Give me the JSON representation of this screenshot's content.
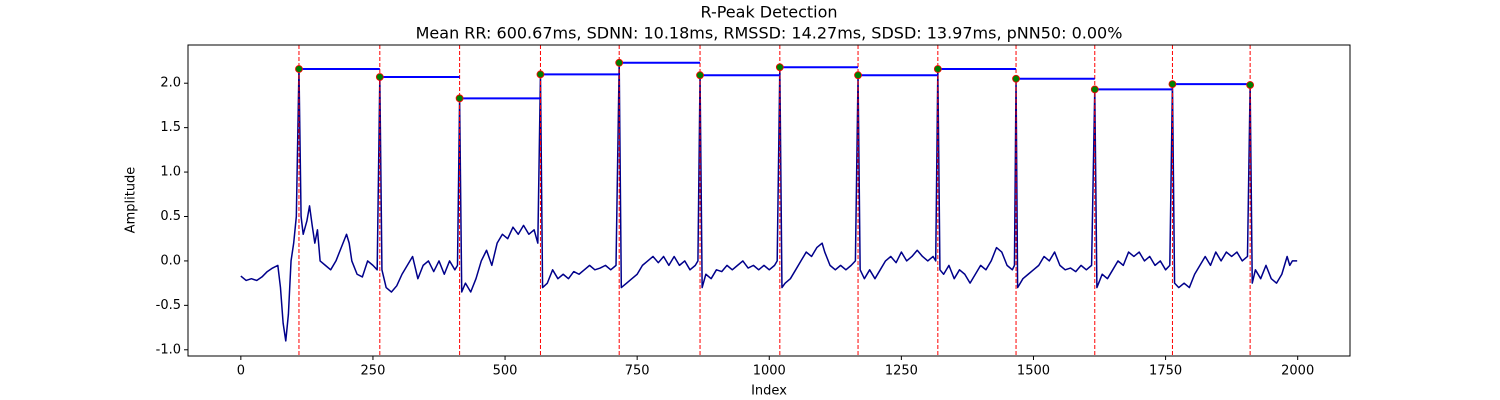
{
  "chart_data": {
    "type": "line",
    "title": "R-Peak Detection",
    "subtitle": "Mean RR: 600.67ms, SDNN: 10.18ms, RMSSD: 14.27ms, SDSD: 13.97ms, pNN50: 0.00%",
    "xlabel": "Index",
    "ylabel": "Amplitude",
    "xlim": [
      -100,
      2099
    ],
    "ylim": [
      -1.07,
      2.43
    ],
    "xticks": [
      0,
      250,
      500,
      750,
      1000,
      1250,
      1500,
      1750,
      2000
    ],
    "yticks": [
      {
        "value": -1,
        "label": "-1.0"
      },
      -0.5,
      {
        "value": 0,
        "label": "0.0"
      },
      0.5,
      {
        "value": 1,
        "label": "1.0"
      },
      1.5,
      {
        "value": 2,
        "label": "2.0"
      }
    ],
    "grid": false,
    "signal": {
      "color": "#00008b",
      "x": [
        0,
        10,
        20,
        30,
        40,
        50,
        60,
        70,
        75,
        80,
        85,
        90,
        95,
        100,
        105,
        110,
        114,
        118,
        125,
        130,
        135,
        140,
        145,
        150,
        160,
        170,
        180,
        190,
        200,
        205,
        210,
        220,
        230,
        240,
        250,
        258,
        263,
        267,
        275,
        285,
        295,
        305,
        315,
        325,
        335,
        345,
        355,
        365,
        375,
        385,
        395,
        405,
        410,
        414,
        418,
        425,
        435,
        445,
        455,
        465,
        475,
        485,
        495,
        505,
        515,
        525,
        535,
        545,
        555,
        562,
        567,
        571,
        580,
        590,
        600,
        610,
        620,
        630,
        640,
        650,
        660,
        670,
        680,
        690,
        700,
        710,
        716,
        720,
        730,
        740,
        750,
        760,
        770,
        780,
        790,
        800,
        810,
        820,
        830,
        840,
        850,
        860,
        865,
        869,
        873,
        880,
        890,
        900,
        910,
        920,
        930,
        940,
        950,
        960,
        970,
        980,
        990,
        1000,
        1010,
        1015,
        1020,
        1024,
        1030,
        1040,
        1050,
        1060,
        1070,
        1080,
        1090,
        1100,
        1105,
        1115,
        1125,
        1135,
        1145,
        1155,
        1163,
        1168,
        1172,
        1180,
        1190,
        1200,
        1210,
        1220,
        1230,
        1240,
        1250,
        1260,
        1270,
        1280,
        1290,
        1300,
        1310,
        1315,
        1319,
        1323,
        1330,
        1340,
        1350,
        1360,
        1370,
        1380,
        1390,
        1400,
        1410,
        1420,
        1430,
        1440,
        1450,
        1460,
        1464,
        1467,
        1470,
        1480,
        1490,
        1500,
        1510,
        1520,
        1530,
        1540,
        1550,
        1560,
        1570,
        1580,
        1590,
        1600,
        1610,
        1616,
        1620,
        1630,
        1640,
        1650,
        1660,
        1670,
        1680,
        1690,
        1700,
        1710,
        1720,
        1730,
        1740,
        1750,
        1758,
        1763,
        1767,
        1775,
        1785,
        1795,
        1805,
        1815,
        1825,
        1835,
        1845,
        1855,
        1865,
        1875,
        1885,
        1895,
        1905,
        1910,
        1914,
        1920,
        1930,
        1940,
        1950,
        1960,
        1970,
        1980,
        1985,
        1990,
        1999
      ],
      "values": [
        -0.17,
        -0.22,
        -0.2,
        -0.22,
        -0.18,
        -0.12,
        -0.08,
        -0.05,
        -0.3,
        -0.7,
        -0.9,
        -0.6,
        0.0,
        0.2,
        0.5,
        2.16,
        0.5,
        0.3,
        0.45,
        0.62,
        0.4,
        0.2,
        0.35,
        0.0,
        -0.05,
        -0.1,
        0.0,
        0.15,
        0.3,
        0.2,
        0.0,
        -0.15,
        -0.18,
        0.0,
        -0.05,
        -0.1,
        2.07,
        -0.1,
        -0.3,
        -0.35,
        -0.28,
        -0.15,
        -0.05,
        0.05,
        -0.2,
        -0.05,
        0.0,
        -0.12,
        0.0,
        -0.15,
        0.0,
        -0.1,
        -0.05,
        1.83,
        -0.35,
        -0.25,
        -0.35,
        -0.2,
        0.0,
        0.12,
        -0.05,
        0.2,
        0.3,
        0.25,
        0.38,
        0.3,
        0.4,
        0.3,
        0.35,
        0.2,
        2.1,
        -0.3,
        -0.25,
        -0.1,
        -0.2,
        -0.15,
        -0.2,
        -0.12,
        -0.15,
        -0.1,
        -0.05,
        -0.1,
        -0.08,
        -0.05,
        -0.1,
        -0.05,
        2.23,
        -0.3,
        -0.25,
        -0.2,
        -0.15,
        -0.05,
        0.0,
        0.05,
        -0.02,
        0.05,
        -0.05,
        0.05,
        -0.05,
        0.0,
        -0.1,
        -0.05,
        0.0,
        2.09,
        -0.3,
        -0.15,
        -0.2,
        -0.1,
        -0.12,
        -0.05,
        -0.1,
        -0.05,
        0.0,
        -0.08,
        -0.05,
        -0.1,
        -0.05,
        -0.1,
        -0.05,
        0.0,
        2.18,
        -0.3,
        -0.25,
        -0.2,
        -0.1,
        0.0,
        0.1,
        0.05,
        0.15,
        0.2,
        0.1,
        -0.05,
        -0.1,
        -0.05,
        -0.1,
        -0.05,
        0.0,
        2.09,
        -0.1,
        -0.2,
        -0.1,
        -0.2,
        -0.1,
        0.0,
        0.05,
        -0.02,
        0.1,
        0.0,
        0.05,
        0.12,
        0.05,
        0.0,
        0.05,
        0.0,
        2.16,
        -0.1,
        -0.15,
        -0.05,
        -0.2,
        -0.1,
        -0.15,
        -0.25,
        -0.15,
        -0.05,
        -0.1,
        0.0,
        0.15,
        0.1,
        -0.05,
        -0.1,
        -0.05,
        2.05,
        -0.3,
        -0.2,
        -0.15,
        -0.1,
        -0.05,
        0.05,
        0.0,
        0.1,
        -0.05,
        -0.1,
        -0.08,
        -0.12,
        -0.05,
        -0.1,
        -0.05,
        1.93,
        -0.3,
        -0.15,
        -0.2,
        -0.1,
        0.0,
        -0.05,
        0.1,
        0.05,
        0.1,
        0.0,
        0.05,
        -0.05,
        0.0,
        -0.1,
        -0.05,
        1.99,
        -0.25,
        -0.3,
        -0.25,
        -0.3,
        -0.15,
        -0.05,
        0.05,
        -0.05,
        0.1,
        0.0,
        0.1,
        0.05,
        0.1,
        0.0,
        0.05,
        1.98,
        -0.25,
        -0.1,
        -0.2,
        -0.05,
        -0.2,
        -0.25,
        -0.15,
        0.05,
        -0.05,
        0.0,
        0.0
      ]
    },
    "peaks": {
      "color": "#008000",
      "edgecolor": "#ff0000",
      "line_color": "#ff0000",
      "interval_color": "#0000ff",
      "x": [
        110,
        263,
        414,
        567,
        716,
        869,
        1020,
        1168,
        1319,
        1467,
        1616,
        1763,
        1910
      ],
      "values": [
        2.16,
        2.07,
        1.83,
        2.1,
        2.23,
        2.09,
        2.18,
        2.09,
        2.16,
        2.05,
        1.93,
        1.99,
        1.98
      ]
    }
  }
}
